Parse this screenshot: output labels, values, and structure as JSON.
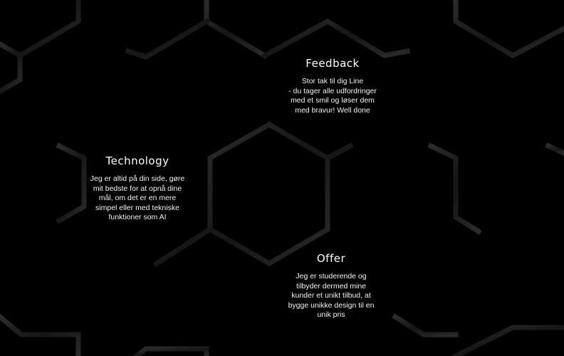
{
  "background_color": "#000000",
  "text_color": "#ffffff",
  "sections": {
    "feedback": {
      "title": "Feedback",
      "body": "Stor tak til dig Line\n- du tager alle udfordringer\nmed et smil og løser dem\nmed bravur! Well done"
    },
    "technology": {
      "title": "Technology",
      "body": "Jeg er altid på din side, gøre\nmit bedste for at opnå dine\nmål, om det er en mere\nsimpel eller med tekniske\nfunktioner som AI"
    },
    "offer": {
      "title": "Offer",
      "body": "Jeg er studerende og\ntilbyder dermed mine\nkunder et unikt tilbud, at\nbygge unikke design til en\nunik pris"
    }
  }
}
